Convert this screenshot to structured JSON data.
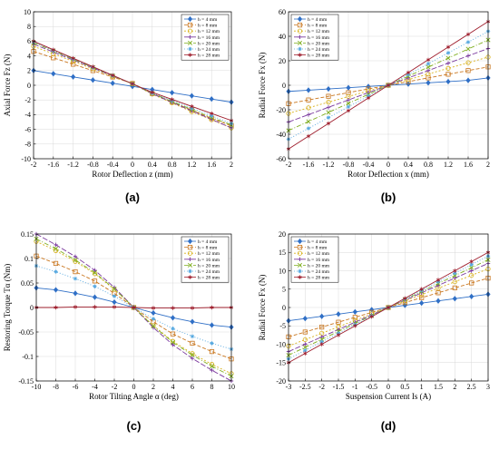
{
  "legend_labels": [
    "h = 4 mm",
    "h = 8 mm",
    "h = 12 mm",
    "h = 16 mm",
    "h = 20 mm",
    "h = 24 mm",
    "h = 28 mm"
  ],
  "series_colors": [
    "#2f6fc6",
    "#c9761e",
    "#d9b21e",
    "#7b3a9e",
    "#7fae1f",
    "#55a8e0",
    "#9e1c2b"
  ],
  "series_markers": [
    "diamond",
    "square",
    "circle",
    "plus",
    "x",
    "star",
    "star6"
  ],
  "chart_data": [
    {
      "type": "line",
      "panel_label": "(a)",
      "xlabel": "Rotor Deflection z (mm)",
      "ylabel": "Axial Force Fz (N)",
      "xlim": [
        -2,
        2
      ],
      "ylim": [
        -10,
        10
      ],
      "xticks": [
        -2,
        -1.6,
        -1.2,
        -0.8,
        -0.4,
        0,
        0.4,
        0.8,
        1.2,
        1.6,
        2
      ],
      "xtick_labels": [
        "-2",
        "-1.6",
        "-1.2",
        "-0.8",
        "-0.4",
        "0",
        "0.4",
        "0.8",
        "1.2",
        "1.6",
        "2"
      ],
      "yticks": [
        -10,
        -8,
        -6,
        -4,
        -2,
        0,
        2,
        4,
        6,
        8,
        10
      ],
      "ytick_labels": [
        "-10",
        "-8",
        "-6",
        "-4",
        "-2",
        "0",
        "2",
        "4",
        "6",
        "8",
        "10"
      ],
      "grid": true,
      "legend": "top-right",
      "x": [
        -2,
        -1.6,
        -1.2,
        -0.8,
        -0.4,
        0,
        0.4,
        0.8,
        1.2,
        1.6,
        2
      ],
      "series": [
        {
          "name": "h = 4 mm",
          "values": [
            2.0,
            1.57,
            1.14,
            0.71,
            0.28,
            -0.15,
            -0.58,
            -1.01,
            -1.44,
            -1.87,
            -2.3
          ]
        },
        {
          "name": "h = 8 mm",
          "values": [
            4.6,
            3.73,
            2.86,
            1.99,
            1.12,
            0.25,
            -1.13,
            -2.28,
            -3.39,
            -4.52,
            -5.5
          ]
        },
        {
          "name": "h = 12 mm",
          "values": [
            5.3,
            4.28,
            3.26,
            2.24,
            1.22,
            0.2,
            -1.2,
            -2.4,
            -3.6,
            -4.7,
            -5.8
          ]
        },
        {
          "name": "h = 16 mm",
          "values": [
            5.6,
            4.52,
            3.44,
            2.36,
            1.28,
            0.2,
            -1.16,
            -2.32,
            -3.48,
            -4.64,
            -5.8
          ]
        },
        {
          "name": "h = 20 mm",
          "values": [
            5.8,
            4.68,
            3.56,
            2.44,
            1.32,
            0.2,
            -1.1,
            -2.2,
            -3.3,
            -4.4,
            -5.4
          ]
        },
        {
          "name": "h = 24 mm",
          "values": [
            5.9,
            4.76,
            3.62,
            2.48,
            1.34,
            0.2,
            -1.04,
            -2.08,
            -3.12,
            -4.16,
            -5.2
          ]
        },
        {
          "name": "h = 28 mm",
          "values": [
            6.0,
            4.84,
            3.68,
            2.52,
            1.36,
            0.2,
            -0.96,
            -1.92,
            -2.88,
            -3.84,
            -4.8
          ]
        }
      ]
    },
    {
      "type": "line",
      "panel_label": "(b)",
      "xlabel": "Rotor Deflection x (mm)",
      "ylabel": "Radial Force Fx (N)",
      "xlim": [
        -2,
        2
      ],
      "ylim": [
        -60,
        60
      ],
      "xticks": [
        -2,
        -1.6,
        -1.2,
        -0.8,
        -0.4,
        0,
        0.4,
        0.8,
        1.2,
        1.6,
        2
      ],
      "xtick_labels": [
        "-2",
        "-1.6",
        "-1.2",
        "-0.8",
        "-0.4",
        "0",
        "0.4",
        "0.8",
        "1.2",
        "1.6",
        "2"
      ],
      "yticks": [
        -60,
        -40,
        -20,
        0,
        20,
        40,
        60
      ],
      "ytick_labels": [
        "-60",
        "-40",
        "-20",
        "0",
        "20",
        "40",
        "60"
      ],
      "grid": true,
      "legend": "top-left",
      "x": [
        -2,
        -1.6,
        -1.2,
        -0.8,
        -0.4,
        0,
        0.4,
        0.8,
        1.2,
        1.6,
        2
      ],
      "series": [
        {
          "name": "h = 4 mm",
          "values": [
            -5,
            -4,
            -3,
            -2,
            -1,
            0,
            1,
            2,
            3,
            4,
            6
          ]
        },
        {
          "name": "h = 8 mm",
          "values": [
            -15,
            -12,
            -9,
            -6,
            -3,
            0,
            3,
            6,
            9,
            12,
            15
          ]
        },
        {
          "name": "h = 12 mm",
          "values": [
            -23,
            -18.4,
            -13.8,
            -9.2,
            -4.6,
            0,
            4.6,
            9.2,
            13.8,
            18.4,
            23
          ]
        },
        {
          "name": "h = 16 mm",
          "values": [
            -30,
            -24,
            -18,
            -12,
            -6,
            0,
            6,
            12,
            18,
            24,
            30
          ]
        },
        {
          "name": "h = 20 mm",
          "values": [
            -37,
            -29.6,
            -22.2,
            -14.8,
            -7.4,
            0,
            7.4,
            14.8,
            22.2,
            29.6,
            37
          ]
        },
        {
          "name": "h = 24 mm",
          "values": [
            -44,
            -35.2,
            -26.4,
            -17.6,
            -8.8,
            0,
            8.8,
            17.6,
            26.4,
            35.2,
            44
          ]
        },
        {
          "name": "h = 28 mm",
          "values": [
            -52,
            -41.6,
            -31.2,
            -20.8,
            -10.4,
            0,
            10.4,
            20.8,
            31.2,
            41.6,
            52
          ]
        }
      ]
    },
    {
      "type": "line",
      "panel_label": "(c)",
      "xlabel": "Rotor Tilting Angle α (deg)",
      "ylabel": "Restoring Torque Tα (Nm)",
      "xlim": [
        -10,
        10
      ],
      "ylim": [
        -0.15,
        0.15
      ],
      "xticks": [
        -10,
        -8,
        -6,
        -4,
        -2,
        0,
        2,
        4,
        6,
        8,
        10
      ],
      "xtick_labels": [
        "-10",
        "-8",
        "-6",
        "-4",
        "-2",
        "0",
        "2",
        "4",
        "6",
        "8",
        "10"
      ],
      "yticks": [
        -0.15,
        -0.1,
        -0.05,
        0,
        0.05,
        0.1,
        0.15
      ],
      "ytick_labels": [
        "-0.15",
        "-0.1",
        "-0.05",
        "0",
        "0.05",
        "0.1",
        "0.15"
      ],
      "grid": true,
      "legend": "top-right",
      "x": [
        -10,
        -8,
        -6,
        -4,
        -2,
        0,
        2,
        4,
        6,
        8,
        10
      ],
      "series": [
        {
          "name": "h = 4 mm",
          "values": [
            0.04,
            0.036,
            0.029,
            0.021,
            0.011,
            0,
            -0.011,
            -0.021,
            -0.029,
            -0.036,
            -0.04
          ]
        },
        {
          "name": "h = 8 mm",
          "values": [
            0.105,
            0.09,
            0.073,
            0.054,
            0.029,
            0,
            -0.029,
            -0.054,
            -0.073,
            -0.09,
            -0.105
          ]
        },
        {
          "name": "h = 12 mm",
          "values": [
            0.135,
            0.116,
            0.094,
            0.069,
            0.037,
            0,
            -0.037,
            -0.069,
            -0.094,
            -0.116,
            -0.135
          ]
        },
        {
          "name": "h = 16 mm",
          "values": [
            0.15,
            0.128,
            0.104,
            0.076,
            0.041,
            0,
            -0.041,
            -0.076,
            -0.104,
            -0.128,
            -0.15
          ]
        },
        {
          "name": "h = 20 mm",
          "values": [
            0.14,
            0.12,
            0.097,
            0.071,
            0.038,
            0,
            -0.038,
            -0.071,
            -0.097,
            -0.12,
            -0.14
          ]
        },
        {
          "name": "h = 24 mm",
          "values": [
            0.085,
            0.073,
            0.059,
            0.043,
            0.023,
            0,
            -0.023,
            -0.043,
            -0.059,
            -0.073,
            -0.085
          ]
        },
        {
          "name": "h = 28 mm",
          "values": [
            0.0,
            0.0,
            0.001,
            0.001,
            0.001,
            0,
            -0.001,
            -0.001,
            -0.001,
            0.0,
            0.0
          ]
        }
      ]
    },
    {
      "type": "line",
      "panel_label": "(d)",
      "xlabel": "Suspension Current Is (A)",
      "ylabel": "Radial Force Fx (N)",
      "xlim": [
        -3,
        3
      ],
      "ylim": [
        -20,
        20
      ],
      "xticks": [
        -3,
        -2.5,
        -2,
        -1.5,
        -1,
        -0.5,
        0,
        0.5,
        1,
        1.5,
        2,
        2.5,
        3
      ],
      "xtick_labels": [
        "-3",
        "-2.5",
        "-2",
        "-1.5",
        "-1",
        "-0.5",
        "0",
        "0.5",
        "1",
        "1.5",
        "2",
        "2.5",
        "3"
      ],
      "yticks": [
        -20,
        -15,
        -10,
        -5,
        0,
        5,
        10,
        15,
        20
      ],
      "ytick_labels": [
        "-20",
        "-15",
        "-10",
        "-5",
        "0",
        "5",
        "10",
        "15",
        "20"
      ],
      "grid": true,
      "legend": "top-left",
      "x": [
        -3,
        -2.5,
        -2,
        -1.5,
        -1,
        -0.5,
        0,
        0.5,
        1,
        1.5,
        2,
        2.5,
        3
      ],
      "series": [
        {
          "name": "h = 4 mm",
          "values": [
            -3.6,
            -3,
            -2.4,
            -1.8,
            -1.2,
            -0.6,
            0,
            0.6,
            1.2,
            1.8,
            2.4,
            3,
            3.6
          ]
        },
        {
          "name": "h = 8 mm",
          "values": [
            -8,
            -6.67,
            -5.33,
            -4,
            -2.67,
            -1.33,
            0,
            1.33,
            2.67,
            4,
            5.33,
            6.67,
            8
          ]
        },
        {
          "name": "h = 12 mm",
          "values": [
            -10.5,
            -8.75,
            -7,
            -5.25,
            -3.5,
            -1.75,
            0,
            1.75,
            3.5,
            5.25,
            7,
            8.75,
            10.5
          ]
        },
        {
          "name": "h = 16 mm",
          "values": [
            -12,
            -10,
            -8,
            -6,
            -4,
            -2,
            0,
            2,
            4,
            6,
            8,
            10,
            12
          ]
        },
        {
          "name": "h = 20 mm",
          "values": [
            -13,
            -10.83,
            -8.67,
            -6.5,
            -4.33,
            -2.17,
            0,
            2.17,
            4.33,
            6.5,
            8.67,
            10.83,
            13
          ]
        },
        {
          "name": "h = 24 mm",
          "values": [
            -14,
            -11.67,
            -9.33,
            -7,
            -4.67,
            -2.33,
            0,
            2.33,
            4.67,
            7,
            9.33,
            11.67,
            14
          ]
        },
        {
          "name": "h = 28 mm",
          "values": [
            -15,
            -12.5,
            -10,
            -7.5,
            -5,
            -2.5,
            0,
            2.5,
            5,
            7.5,
            10,
            12.5,
            15
          ]
        }
      ]
    }
  ]
}
